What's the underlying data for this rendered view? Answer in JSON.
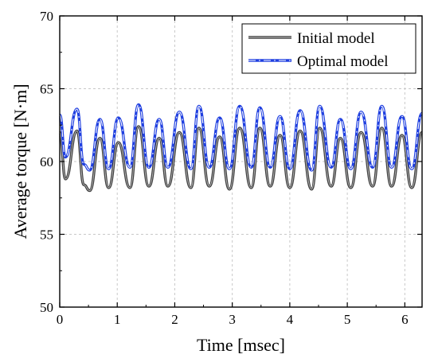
{
  "chart_data": {
    "type": "line",
    "xlabel": "Time [msec]",
    "ylabel": "Average torque [N·m]",
    "xlim": [
      0,
      6.3
    ],
    "ylim": [
      50,
      70
    ],
    "xticks": [
      0,
      1,
      2,
      3,
      4,
      5,
      6
    ],
    "yticks": [
      50,
      55,
      60,
      65,
      70
    ],
    "xtick_labels": [
      "0",
      "1",
      "2",
      "3",
      "4",
      "5",
      "6"
    ],
    "ytick_labels": [
      "50",
      "55",
      "60",
      "65",
      "70"
    ],
    "grid": true,
    "legend_position": "top-right",
    "series": [
      {
        "name": "Initial model",
        "color": "#404040",
        "style": "solid-with-light-center",
        "x": [
          0.0,
          0.1,
          0.3,
          0.42,
          0.52,
          0.7,
          0.85,
          1.02,
          1.22,
          1.37,
          1.55,
          1.73,
          1.88,
          2.08,
          2.28,
          2.42,
          2.6,
          2.78,
          2.95,
          3.13,
          3.33,
          3.48,
          3.66,
          3.83,
          4.0,
          4.18,
          4.38,
          4.52,
          4.72,
          4.88,
          5.06,
          5.24,
          5.44,
          5.6,
          5.77,
          5.95,
          6.12,
          6.3
        ],
        "values": [
          62.0,
          58.8,
          62.1,
          58.4,
          58.0,
          61.6,
          58.2,
          61.3,
          58.2,
          62.4,
          58.3,
          61.6,
          58.3,
          62.0,
          58.2,
          62.3,
          58.3,
          61.7,
          58.1,
          62.3,
          58.2,
          62.3,
          58.3,
          61.8,
          58.2,
          62.1,
          58.1,
          62.3,
          58.3,
          61.6,
          58.2,
          62.0,
          58.3,
          62.3,
          58.3,
          61.8,
          58.2,
          62.0
        ]
      },
      {
        "name": "Optimal model",
        "color": "#1f3fe0",
        "style": "dash-dot",
        "x": [
          0.0,
          0.1,
          0.3,
          0.42,
          0.52,
          0.7,
          0.85,
          1.02,
          1.22,
          1.37,
          1.55,
          1.73,
          1.88,
          2.08,
          2.28,
          2.42,
          2.6,
          2.78,
          2.95,
          3.13,
          3.33,
          3.48,
          3.66,
          3.83,
          4.0,
          4.18,
          4.38,
          4.52,
          4.72,
          4.88,
          5.06,
          5.24,
          5.44,
          5.6,
          5.77,
          5.95,
          6.12,
          6.3
        ],
        "values": [
          63.2,
          60.3,
          63.6,
          59.8,
          59.4,
          62.9,
          59.5,
          63.0,
          59.6,
          63.9,
          59.6,
          62.9,
          59.6,
          63.4,
          59.5,
          63.8,
          59.6,
          63.0,
          59.5,
          63.8,
          59.6,
          63.7,
          59.6,
          63.1,
          59.5,
          63.5,
          59.4,
          63.8,
          59.6,
          62.9,
          59.5,
          63.4,
          59.6,
          63.8,
          59.6,
          63.1,
          59.5,
          63.3
        ]
      }
    ]
  }
}
